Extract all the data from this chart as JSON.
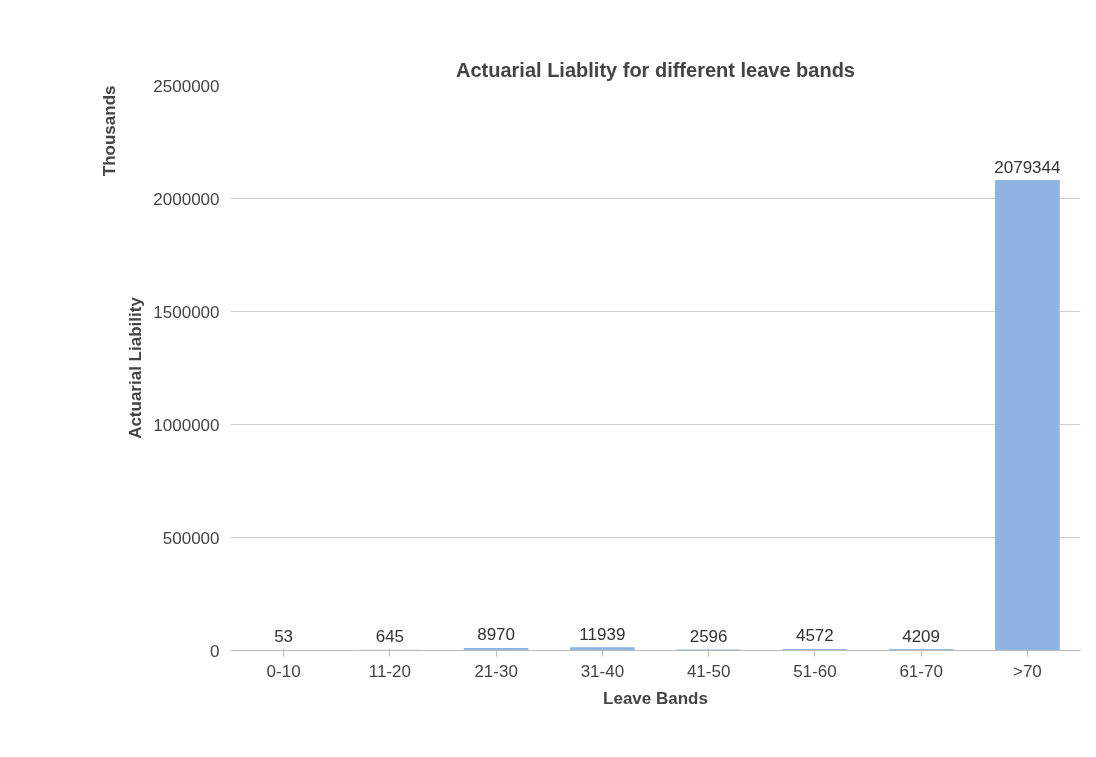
{
  "chart_data": {
    "type": "bar",
    "title": "Actuarial Liablity for different leave bands",
    "xlabel": "Leave Bands",
    "ylabel": "Actuarial Liability",
    "annotations": [
      "Thousands"
    ],
    "categories": [
      "0-10",
      "11-20",
      "21-30",
      "31-40",
      "41-50",
      "51-60",
      "61-70",
      ">70"
    ],
    "values": [
      53,
      645,
      8970,
      11939,
      2596,
      4572,
      4209,
      2079344
    ],
    "color": "#8db4e2",
    "ylim": [
      0,
      2500000
    ],
    "yticks": [
      0,
      500000,
      1000000,
      1500000,
      2000000,
      2500000
    ],
    "grid": "y",
    "data_labels": true
  }
}
